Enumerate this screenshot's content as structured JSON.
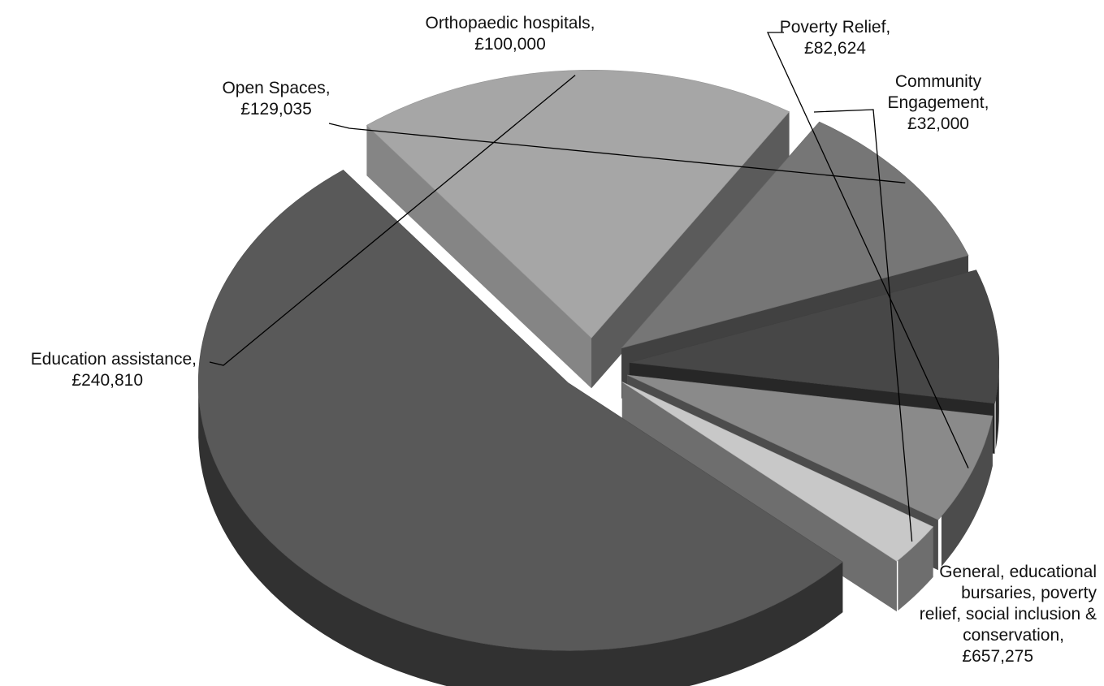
{
  "chart_data": {
    "type": "pie",
    "style": "3d-exploded",
    "unit": "£",
    "slices": [
      {
        "label_lines": [
          "General, educational",
          "bursaries, poverty",
          "relief, social inclusion &",
          "conservation,"
        ],
        "value_text": "£657,275",
        "value": 657275,
        "color": "#595959"
      },
      {
        "label_lines": [
          "Education assistance,"
        ],
        "value_text": "£240,810",
        "value": 240810,
        "color": "#a6a6a6"
      },
      {
        "label_lines": [
          "Open Spaces,"
        ],
        "value_text": "£129,035",
        "value": 129035,
        "color": "#767676"
      },
      {
        "label_lines": [
          "Orthopaedic hospitals,"
        ],
        "value_text": "£100,000",
        "value": 100000,
        "color": "#474747"
      },
      {
        "label_lines": [
          "Poverty Relief,"
        ],
        "value_text": "£82,624",
        "value": 82624,
        "color": "#8a8a8a"
      },
      {
        "label_lines": [
          "Community",
          "Engagement,"
        ],
        "value_text": "£32,000",
        "value": 32000,
        "color": "#c8c8c8"
      }
    ]
  }
}
